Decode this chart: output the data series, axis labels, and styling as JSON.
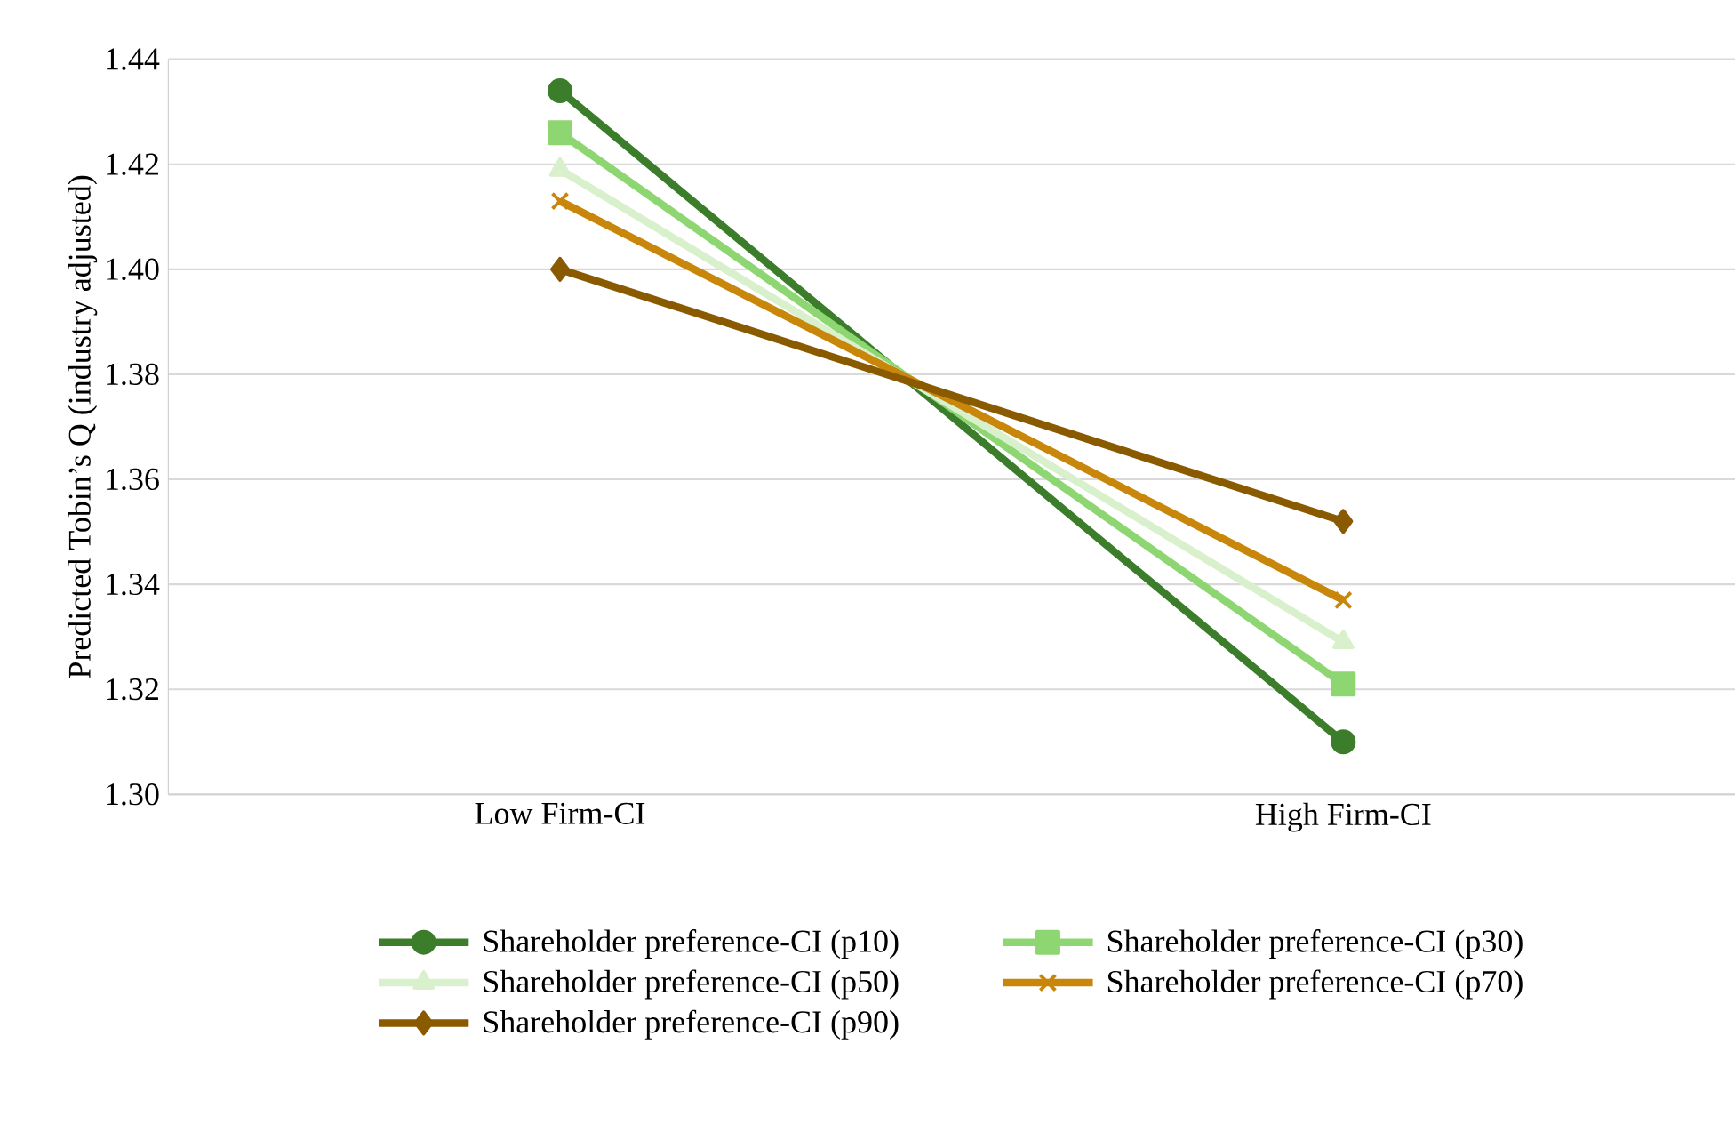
{
  "chart_data": {
    "type": "line",
    "ylabel": "Predicted Tobin’s Q (industry adjusted)",
    "categories": [
      "Low Firm-CI",
      "High Firm-CI"
    ],
    "series": [
      {
        "name": "Shareholder preference-CI (p10)",
        "color": "#3b7d2b",
        "marker": "circle",
        "values": [
          1.434,
          1.31
        ]
      },
      {
        "name": "Shareholder preference-CI (p30)",
        "color": "#8dd672",
        "marker": "square",
        "values": [
          1.426,
          1.321
        ]
      },
      {
        "name": "Shareholder preference-CI (p50)",
        "color": "#d9f0cc",
        "marker": "triangle",
        "values": [
          1.419,
          1.329
        ]
      },
      {
        "name": "Shareholder preference-CI (p70)",
        "color": "#c8860b",
        "marker": "cross",
        "values": [
          1.413,
          1.337
        ]
      },
      {
        "name": "Shareholder preference-CI (p90)",
        "color": "#8a5a00",
        "marker": "diamond",
        "values": [
          1.4,
          1.352
        ]
      }
    ],
    "ylim": [
      1.3,
      1.44
    ],
    "yticks": [
      {
        "value": 1.3,
        "label": "1.30"
      },
      {
        "value": 1.32,
        "label": "1.32"
      },
      {
        "value": 1.34,
        "label": "1.34"
      },
      {
        "value": 1.36,
        "label": "1.36"
      },
      {
        "value": 1.38,
        "label": "1.38"
      },
      {
        "value": 1.4,
        "label": "1.40"
      },
      {
        "value": 1.42,
        "label": "1.42"
      },
      {
        "value": 1.44,
        "label": "1.44"
      }
    ],
    "grid": "y",
    "legend": "bottom"
  }
}
